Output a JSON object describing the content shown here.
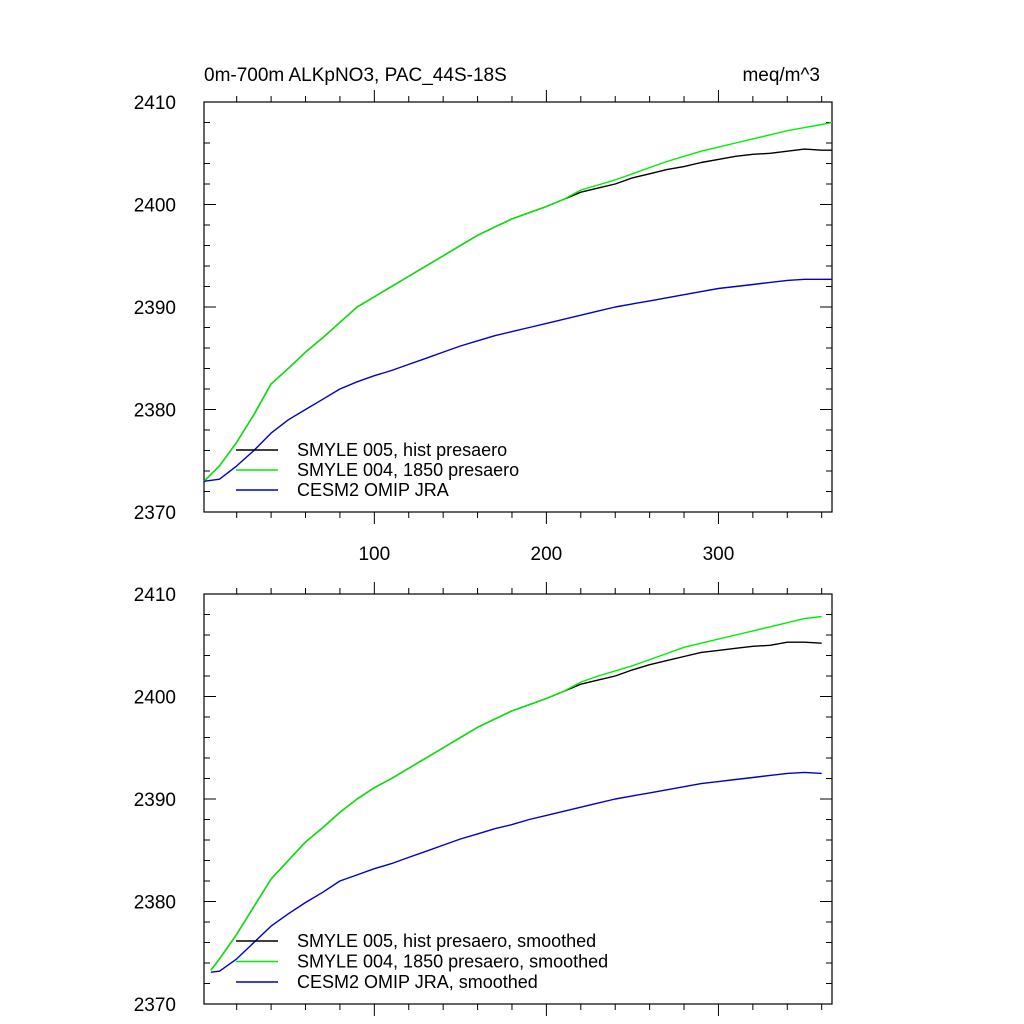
{
  "figure": {
    "title_left": "0m-700m ALKpNO3, PAC_44S-18S",
    "title_right": "meq/m^3"
  },
  "chart_data": [
    {
      "type": "line",
      "title": "0m-700m ALKpNO3, PAC_44S-18S",
      "units": "meq/m^3",
      "xlim": [
        1,
        366
      ],
      "ylim": [
        2370,
        2410
      ],
      "xticks": [
        100,
        200,
        300
      ],
      "yticks": [
        2370,
        2380,
        2390,
        2400,
        2410
      ],
      "grid": false,
      "legend_position": "bottom-left",
      "series": [
        {
          "name": "SMYLE 005, hist presaero",
          "color": "#000000",
          "x": [
            1,
            10,
            20,
            30,
            40,
            50,
            60,
            70,
            80,
            90,
            100,
            110,
            120,
            130,
            140,
            150,
            160,
            170,
            180,
            190,
            200,
            210,
            220,
            230,
            240,
            250,
            260,
            270,
            280,
            290,
            300,
            310,
            320,
            330,
            340,
            350,
            360,
            366
          ],
          "y": [
            2373.0,
            2374.5,
            2376.8,
            2379.5,
            2382.5,
            2384.0,
            2385.6,
            2387.0,
            2388.5,
            2390.0,
            2391.0,
            2392.0,
            2393.0,
            2394.0,
            2395.0,
            2396.0,
            2397.0,
            2397.8,
            2398.6,
            2399.2,
            2399.8,
            2400.5,
            2401.2,
            2401.6,
            2402.0,
            2402.6,
            2403.0,
            2403.4,
            2403.7,
            2404.1,
            2404.4,
            2404.7,
            2404.9,
            2405.0,
            2405.2,
            2405.4,
            2405.3,
            2405.3
          ]
        },
        {
          "name": "SMYLE 004, 1850 presaero",
          "color": "#00ee00",
          "x": [
            1,
            10,
            20,
            30,
            40,
            50,
            60,
            70,
            80,
            90,
            100,
            110,
            120,
            130,
            140,
            150,
            160,
            170,
            180,
            190,
            200,
            210,
            220,
            230,
            240,
            250,
            260,
            270,
            280,
            290,
            300,
            310,
            320,
            330,
            340,
            350,
            360,
            366
          ],
          "y": [
            2373.0,
            2374.5,
            2376.8,
            2379.5,
            2382.5,
            2384.0,
            2385.6,
            2387.0,
            2388.5,
            2390.0,
            2391.0,
            2392.0,
            2393.0,
            2394.0,
            2395.0,
            2396.0,
            2397.0,
            2397.8,
            2398.6,
            2399.2,
            2399.8,
            2400.5,
            2401.4,
            2401.9,
            2402.4,
            2403.0,
            2403.6,
            2404.2,
            2404.7,
            2405.2,
            2405.6,
            2406.0,
            2406.4,
            2406.8,
            2407.2,
            2407.5,
            2407.8,
            2408.0
          ]
        },
        {
          "name": "CESM2 OMIP JRA",
          "color": "#0000cc",
          "x": [
            1,
            10,
            20,
            30,
            40,
            50,
            60,
            70,
            80,
            90,
            100,
            110,
            120,
            130,
            140,
            150,
            160,
            170,
            180,
            190,
            200,
            210,
            220,
            230,
            240,
            250,
            260,
            270,
            280,
            290,
            300,
            310,
            320,
            330,
            340,
            350,
            360,
            366
          ],
          "y": [
            2373.0,
            2373.2,
            2374.5,
            2376.0,
            2377.7,
            2379.0,
            2380.0,
            2381.0,
            2382.0,
            2382.7,
            2383.3,
            2383.8,
            2384.4,
            2385.0,
            2385.6,
            2386.2,
            2386.7,
            2387.2,
            2387.6,
            2388.0,
            2388.4,
            2388.8,
            2389.2,
            2389.6,
            2390.0,
            2390.3,
            2390.6,
            2390.9,
            2391.2,
            2391.5,
            2391.8,
            2392.0,
            2392.2,
            2392.4,
            2392.6,
            2392.7,
            2392.7,
            2392.7
          ]
        }
      ]
    },
    {
      "type": "line",
      "xlim": [
        1,
        366
      ],
      "ylim": [
        2370,
        2410
      ],
      "xticks": [
        100,
        200,
        300
      ],
      "yticks": [
        2370,
        2380,
        2390,
        2400,
        2410
      ],
      "grid": false,
      "legend_position": "bottom-left",
      "series": [
        {
          "name": "SMYLE 005, hist presaero, smoothed",
          "color": "#000000",
          "x": [
            5,
            10,
            20,
            30,
            40,
            50,
            60,
            70,
            80,
            90,
            100,
            110,
            120,
            130,
            140,
            150,
            160,
            170,
            180,
            190,
            200,
            210,
            220,
            230,
            240,
            250,
            260,
            270,
            280,
            290,
            300,
            310,
            320,
            330,
            340,
            350,
            360
          ],
          "y": [
            2373.3,
            2374.4,
            2376.8,
            2379.5,
            2382.2,
            2384.0,
            2385.8,
            2387.2,
            2388.7,
            2390.0,
            2391.1,
            2392.0,
            2393.0,
            2394.0,
            2395.0,
            2396.0,
            2397.0,
            2397.8,
            2398.6,
            2399.2,
            2399.8,
            2400.5,
            2401.2,
            2401.6,
            2402.0,
            2402.6,
            2403.1,
            2403.5,
            2403.9,
            2404.3,
            2404.5,
            2404.7,
            2404.9,
            2405.0,
            2405.3,
            2405.3,
            2405.2
          ]
        },
        {
          "name": "SMYLE 004, 1850 presaero, smoothed",
          "color": "#00ee00",
          "x": [
            5,
            10,
            20,
            30,
            40,
            50,
            60,
            70,
            80,
            90,
            100,
            110,
            120,
            130,
            140,
            150,
            160,
            170,
            180,
            190,
            200,
            210,
            220,
            230,
            240,
            250,
            260,
            270,
            280,
            290,
            300,
            310,
            320,
            330,
            340,
            350,
            360
          ],
          "y": [
            2373.3,
            2374.4,
            2376.8,
            2379.5,
            2382.2,
            2384.0,
            2385.8,
            2387.2,
            2388.7,
            2390.0,
            2391.1,
            2392.0,
            2393.0,
            2394.0,
            2395.0,
            2396.0,
            2397.0,
            2397.8,
            2398.6,
            2399.2,
            2399.8,
            2400.5,
            2401.4,
            2402.0,
            2402.5,
            2403.0,
            2403.6,
            2404.2,
            2404.8,
            2405.2,
            2405.6,
            2406.0,
            2406.4,
            2406.8,
            2407.2,
            2407.6,
            2407.8
          ]
        },
        {
          "name": "CESM2 OMIP JRA, smoothed",
          "color": "#0000cc",
          "x": [
            5,
            10,
            20,
            30,
            40,
            50,
            60,
            70,
            80,
            90,
            100,
            110,
            120,
            130,
            140,
            150,
            160,
            170,
            180,
            190,
            200,
            210,
            220,
            230,
            240,
            250,
            260,
            270,
            280,
            290,
            300,
            310,
            320,
            330,
            340,
            350,
            360
          ],
          "y": [
            2373.1,
            2373.2,
            2374.4,
            2376.0,
            2377.6,
            2378.8,
            2379.9,
            2380.9,
            2382.0,
            2382.6,
            2383.2,
            2383.7,
            2384.3,
            2384.9,
            2385.5,
            2386.1,
            2386.6,
            2387.1,
            2387.5,
            2388.0,
            2388.4,
            2388.8,
            2389.2,
            2389.6,
            2390.0,
            2390.3,
            2390.6,
            2390.9,
            2391.2,
            2391.5,
            2391.7,
            2391.9,
            2392.1,
            2392.3,
            2392.5,
            2392.6,
            2392.5
          ]
        }
      ]
    }
  ]
}
